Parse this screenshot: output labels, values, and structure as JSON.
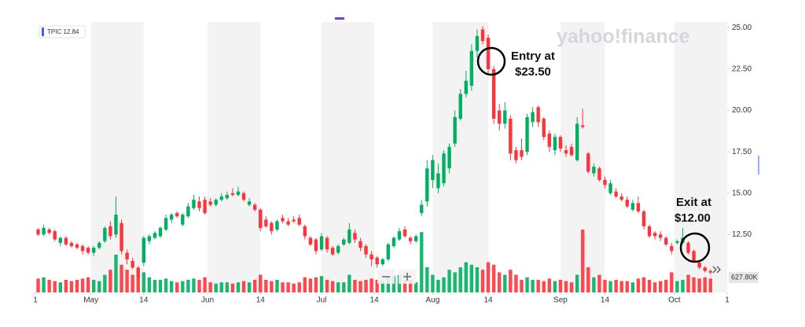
{
  "chart_data": {
    "type": "candlestick",
    "legend": "TPIC 12.84",
    "watermark": "yahoo!finance",
    "annotations": [
      {
        "lines": [
          "Entry at",
          "$23.50"
        ]
      },
      {
        "lines": [
          "Exit at",
          "$12.00"
        ]
      }
    ],
    "volume_label": "627.80K",
    "up_color": "#00b061",
    "down_color": "#ff333a",
    "ylim": [
      9.0,
      25.35
    ],
    "yticks": [
      {
        "value": 12.5,
        "label": "12.50"
      },
      {
        "value": 15,
        "label": "15.00"
      },
      {
        "value": 17.5,
        "label": "17.50"
      },
      {
        "value": 20,
        "label": "20.00"
      },
      {
        "value": 22.5,
        "label": "22.50"
      },
      {
        "value": 25,
        "label": "25.00"
      }
    ],
    "xlim": [
      0,
      124.5
    ],
    "xticks": [
      {
        "value": 0,
        "label": "1"
      },
      {
        "value": 10,
        "label": "May"
      },
      {
        "value": 19.5,
        "label": "14"
      },
      {
        "value": 31,
        "label": "Jun"
      },
      {
        "value": 40.5,
        "label": "14"
      },
      {
        "value": 51.5,
        "label": "Jul"
      },
      {
        "value": 61,
        "label": "14"
      },
      {
        "value": 71.5,
        "label": "Aug"
      },
      {
        "value": 81.5,
        "label": "14"
      },
      {
        "value": 94.5,
        "label": "Sep"
      },
      {
        "value": 102.5,
        "label": "14"
      },
      {
        "value": 115,
        "label": "Oct"
      },
      {
        "value": 124.5,
        "label": "1"
      }
    ],
    "volume_lim": [
      0,
      3000
    ],
    "open": [
      12.8,
      12.5,
      12.8,
      12.7,
      12.0,
      12.3,
      12.0,
      11.9,
      11.8,
      11.7,
      11.4,
      11.7,
      12.1,
      13.0,
      12.5,
      13.2,
      11.4,
      10.9,
      10.5,
      10.8,
      12.1,
      12.3,
      12.4,
      12.8,
      13.4,
      13.8,
      13.1,
      13.6,
      14.1,
      14.5,
      14.6,
      14.5,
      14.3,
      14.6,
      14.7,
      15.0,
      14.9,
      15.0,
      14.3,
      14.3,
      14.0,
      13.4,
      13.2,
      12.8,
      13.5,
      13.3,
      13.4,
      13.5,
      13.0,
      12.3,
      12.2,
      11.6,
      12.3,
      11.7,
      11.4,
      11.9,
      12.0,
      12.6,
      12.1,
      11.8,
      11.3,
      11.1,
      10.7,
      11.0,
      11.8,
      12.2,
      12.8,
      12.3,
      12.1,
      13.8,
      14.5,
      15.8,
      15.3,
      15.6,
      16.5,
      18.0,
      19.5,
      21.0,
      21.5,
      23.6,
      24.9,
      24.4,
      22.5,
      20.0,
      19.2,
      19.5,
      17.6,
      17.6,
      17.5,
      19.3,
      20.2,
      19.5,
      18.6,
      17.6,
      18.4,
      17.6,
      17.8,
      17.0,
      19.1,
      17.4,
      16.2,
      16.5,
      15.8,
      15.0,
      15.1,
      14.8,
      14.6,
      14.0,
      14.4,
      13.9,
      13.0,
      12.6,
      12.5,
      12.3,
      11.8,
      12.0,
      12.0,
      12.0,
      11.5,
      10.8,
      10.5,
      10.3
    ],
    "high": [
      12.9,
      13.1,
      12.9,
      12.8,
      12.4,
      12.4,
      12.1,
      12.0,
      11.9,
      11.8,
      11.8,
      12.1,
      13.0,
      13.3,
      14.8,
      13.4,
      11.6,
      11.1,
      10.6,
      12.4,
      12.5,
      12.7,
      13.0,
      13.7,
      13.8,
      13.9,
      13.8,
      14.4,
      14.9,
      14.8,
      14.8,
      14.7,
      14.7,
      15.0,
      15.1,
      15.3,
      15.4,
      15.1,
      14.7,
      14.4,
      14.1,
      13.6,
      13.3,
      13.4,
      13.7,
      13.5,
      13.6,
      13.7,
      13.1,
      12.4,
      12.3,
      12.6,
      12.4,
      11.8,
      11.9,
      12.3,
      13.2,
      12.8,
      12.3,
      11.9,
      11.5,
      11.2,
      11.1,
      12.0,
      12.4,
      12.9,
      13.0,
      12.4,
      12.5,
      14.6,
      17.0,
      17.3,
      16.8,
      17.6,
      18.0,
      20.0,
      21.3,
      22.4,
      24.0,
      24.9,
      25.1,
      24.6,
      22.7,
      20.4,
      20.5,
      19.7,
      17.8,
      18.3,
      19.8,
      20.2,
      20.3,
      19.6,
      18.8,
      18.6,
      18.5,
      17.9,
      18.0,
      19.6,
      20.1,
      17.5,
      16.8,
      16.6,
      16.0,
      15.8,
      15.3,
      15.0,
      14.8,
      14.6,
      14.8,
      14.0,
      13.1,
      12.7,
      12.7,
      12.4,
      12.0,
      12.2,
      12.9,
      12.1,
      11.6,
      10.9,
      10.6,
      10.4
    ],
    "low": [
      12.4,
      12.4,
      12.5,
      12.1,
      11.8,
      11.8,
      11.7,
      11.6,
      11.3,
      11.3,
      11.2,
      11.6,
      12.0,
      12.2,
      12.3,
      11.3,
      10.7,
      10.4,
      9.7,
      10.6,
      11.9,
      12.2,
      12.3,
      12.7,
      13.2,
      13.5,
      13.0,
      13.5,
      14.0,
      13.9,
      13.7,
      14.2,
      14.2,
      14.5,
      14.6,
      14.8,
      14.8,
      14.5,
      14.2,
      13.9,
      12.7,
      12.9,
      12.5,
      12.7,
      13.2,
      13.0,
      13.2,
      13.0,
      12.2,
      11.8,
      11.3,
      11.5,
      11.4,
      11.2,
      11.3,
      11.8,
      11.9,
      12.0,
      11.5,
      11.1,
      10.6,
      10.5,
      10.6,
      10.9,
      11.7,
      12.1,
      12.3,
      11.9,
      12.0,
      13.6,
      14.2,
      15.3,
      15.0,
      15.4,
      16.2,
      17.8,
      19.4,
      20.8,
      21.2,
      23.2,
      24.0,
      22.2,
      19.2,
      18.8,
      18.9,
      17.0,
      16.8,
      17.0,
      17.3,
      19.0,
      19.0,
      18.2,
      17.5,
      17.3,
      17.5,
      17.2,
      17.2,
      16.9,
      18.9,
      16.2,
      16.0,
      15.7,
      15.3,
      14.9,
      14.7,
      14.5,
      14.1,
      13.9,
      13.8,
      12.8,
      12.3,
      12.2,
      12.1,
      11.8,
      11.3,
      11.9,
      11.9,
      11.3,
      10.8,
      10.4,
      10.2,
      10.1
    ],
    "close": [
      12.5,
      12.9,
      12.6,
      12.2,
      12.3,
      11.9,
      11.8,
      11.7,
      11.5,
      11.4,
      11.7,
      12.0,
      12.9,
      12.4,
      13.7,
      11.5,
      11.0,
      10.5,
      9.9,
      12.3,
      12.4,
      12.6,
      12.9,
      13.5,
      13.7,
      13.6,
      13.7,
      14.2,
      14.6,
      14.1,
      13.8,
      14.3,
      14.6,
      14.8,
      14.9,
      14.9,
      15.1,
      14.6,
      14.5,
      14.0,
      12.9,
      13.0,
      12.7,
      13.3,
      13.3,
      13.1,
      13.3,
      13.1,
      12.4,
      11.9,
      11.5,
      12.4,
      11.6,
      11.3,
      11.8,
      12.2,
      12.8,
      12.2,
      11.7,
      11.3,
      11.0,
      10.7,
      11.0,
      11.9,
      12.3,
      12.7,
      12.4,
      12.1,
      12.4,
      14.3,
      16.5,
      17.0,
      16.2,
      17.4,
      17.8,
      19.6,
      21.0,
      21.8,
      23.6,
      24.5,
      24.2,
      22.5,
      19.5,
      19.2,
      20.0,
      17.4,
      17.0,
      17.2,
      19.6,
      19.9,
      19.3,
      18.4,
      17.8,
      18.4,
      17.7,
      17.4,
      17.3,
      19.2,
      19.0,
      16.3,
      16.6,
      15.8,
      15.5,
      15.6,
      14.8,
      14.6,
      14.2,
      14.4,
      13.9,
      13.0,
      12.4,
      12.4,
      12.3,
      11.9,
      11.5,
      12.1,
      12.3,
      11.4,
      10.9,
      10.5,
      10.3,
      10.2
    ],
    "volume": [
      550,
      600,
      500,
      450,
      400,
      500,
      450,
      500,
      550,
      600,
      500,
      450,
      700,
      900,
      1500,
      1100,
      900,
      700,
      600,
      800,
      600,
      500,
      500,
      550,
      450,
      400,
      450,
      500,
      550,
      500,
      600,
      400,
      350,
      400,
      400,
      350,
      400,
      450,
      400,
      500,
      700,
      500,
      450,
      500,
      400,
      400,
      350,
      400,
      600,
      550,
      600,
      650,
      500,
      450,
      400,
      400,
      700,
      500,
      450,
      500,
      550,
      500,
      450,
      600,
      650,
      700,
      500,
      500,
      400,
      2400,
      1000,
      700,
      500,
      600,
      900,
      800,
      1000,
      1200,
      1100,
      1000,
      900,
      1200,
      1100,
      800,
      700,
      900,
      700,
      500,
      600,
      500,
      500,
      450,
      550,
      450,
      500,
      450,
      400,
      700,
      2500,
      1000,
      600,
      700,
      500,
      450,
      500,
      450,
      450,
      400,
      550,
      600,
      500,
      400,
      450,
      500,
      800,
      450,
      500,
      700,
      600,
      550,
      600,
      550
    ]
  }
}
